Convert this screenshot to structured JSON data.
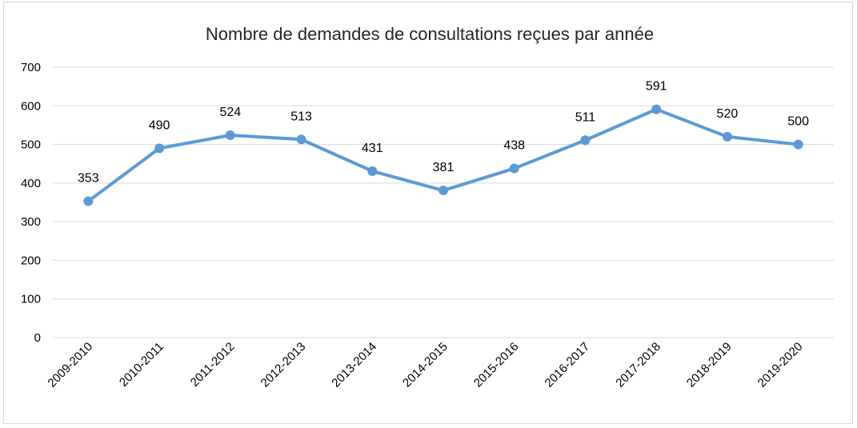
{
  "chart_data": {
    "type": "line",
    "title": "Nombre de demandes de consultations reçues par année",
    "categories": [
      "2009-2010",
      "2010-2011",
      "2011-2012",
      "2012-2013",
      "2013-2014",
      "2014-2015",
      "2015-2016",
      "2016-2017",
      "2017-2018",
      "2018-2019",
      "2019-2020"
    ],
    "values": [
      353,
      490,
      524,
      513,
      431,
      381,
      438,
      511,
      591,
      520,
      500
    ],
    "data_labels": [
      "353",
      "490",
      "524",
      "513",
      "431",
      "381",
      "438",
      "511",
      "591",
      "520",
      "500"
    ],
    "ylim": [
      0,
      700
    ],
    "yticks": [
      "0",
      "100",
      "200",
      "300",
      "400",
      "500",
      "600",
      "700"
    ],
    "grid": true,
    "legend": "none",
    "line_color": "#5b9bd5",
    "grid_color": "#d9d9d9"
  }
}
